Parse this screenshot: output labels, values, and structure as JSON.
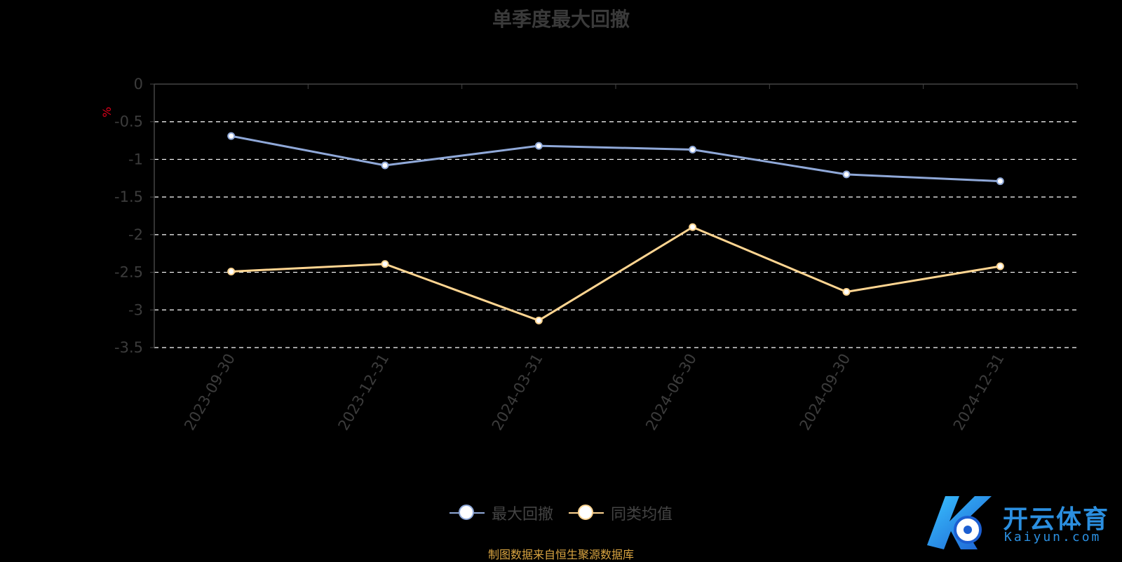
{
  "chart_data": {
    "type": "line",
    "title": "单季度最大回撤",
    "ylabel": "%",
    "xlabel": "",
    "categories": [
      "2023-09-30",
      "2023-12-31",
      "2024-03-31",
      "2024-06-30",
      "2024-09-30",
      "2024-12-31"
    ],
    "ylim": [
      -3.5,
      0
    ],
    "yticks": [
      "0",
      "-0.5",
      "-1",
      "-1.5",
      "-2",
      "-2.5",
      "-3",
      "-3.5"
    ],
    "grid": true,
    "legend": "bottom-center",
    "series": [
      {
        "name": "最大回撤",
        "values": [
          -0.69,
          -1.08,
          -0.82,
          -0.87,
          -1.2,
          -1.29
        ],
        "color": "#8fa8d8"
      },
      {
        "name": "同类均值",
        "values": [
          -2.49,
          -2.39,
          -3.14,
          -1.9,
          -2.76,
          -2.42
        ],
        "color": "#ffd591"
      }
    ]
  },
  "source_note": "制图数据来自恒生聚源数据库",
  "watermark": {
    "brand": "开云体育",
    "domain": "Kaiyun.com"
  }
}
